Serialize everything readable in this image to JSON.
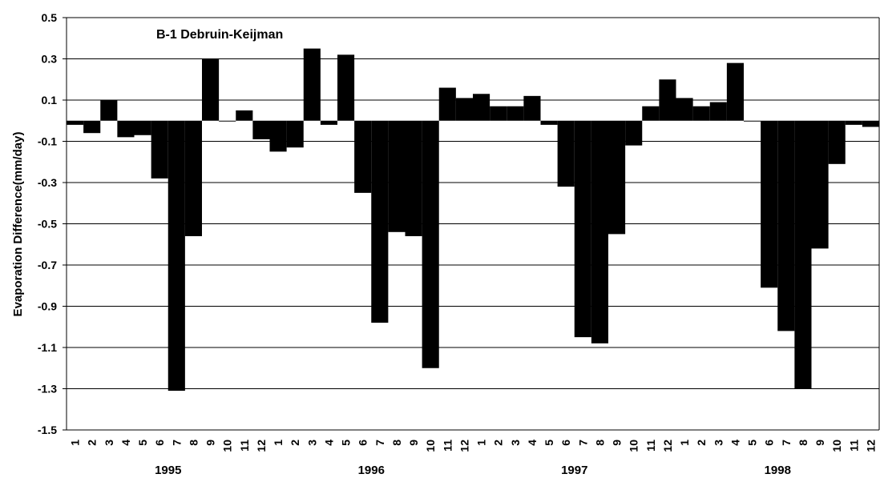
{
  "chart_data": {
    "type": "bar",
    "title": "B-1 Debruin-Keijman",
    "y_label": "Evaporation Difference(mm/day)",
    "categories": [
      "1",
      "2",
      "3",
      "4",
      "5",
      "6",
      "7",
      "8",
      "9",
      "10",
      "11",
      "12",
      "1",
      "2",
      "3",
      "4",
      "5",
      "6",
      "7",
      "8",
      "9",
      "10",
      "11",
      "12",
      "1",
      "2",
      "3",
      "4",
      "5",
      "6",
      "7",
      "8",
      "9",
      "10",
      "11",
      "12",
      "1",
      "2",
      "3",
      "4",
      "5",
      "6",
      "7",
      "8",
      "9",
      "10",
      "11",
      "12"
    ],
    "groups": [
      "1995",
      "1996",
      "1997",
      "1998"
    ],
    "values": [
      -0.02,
      -0.06,
      0.1,
      -0.08,
      -0.07,
      -0.28,
      -1.31,
      -0.56,
      0.3,
      0,
      0.05,
      -0.09,
      -0.15,
      -0.13,
      0.35,
      -0.02,
      0.32,
      -0.35,
      -0.98,
      -0.54,
      -0.56,
      -1.2,
      0.16,
      0.11,
      0.13,
      0.07,
      0.07,
      0.12,
      -0.02,
      -0.32,
      -1.05,
      -1.08,
      -0.55,
      -0.12,
      0.07,
      0.2,
      0.11,
      0.07,
      0.09,
      0.28,
      0,
      -0.81,
      -1.02,
      -1.3,
      -0.62,
      -0.21,
      -0.02,
      -0.03
    ],
    "color": "#000000",
    "ylim": [
      -1.5,
      0.5
    ],
    "yticks": [
      0.5,
      0.3,
      0.1,
      -0.1,
      -0.3,
      -0.5,
      -0.7,
      -0.9,
      -1.1,
      -1.3,
      -1.5
    ],
    "grid": true
  }
}
